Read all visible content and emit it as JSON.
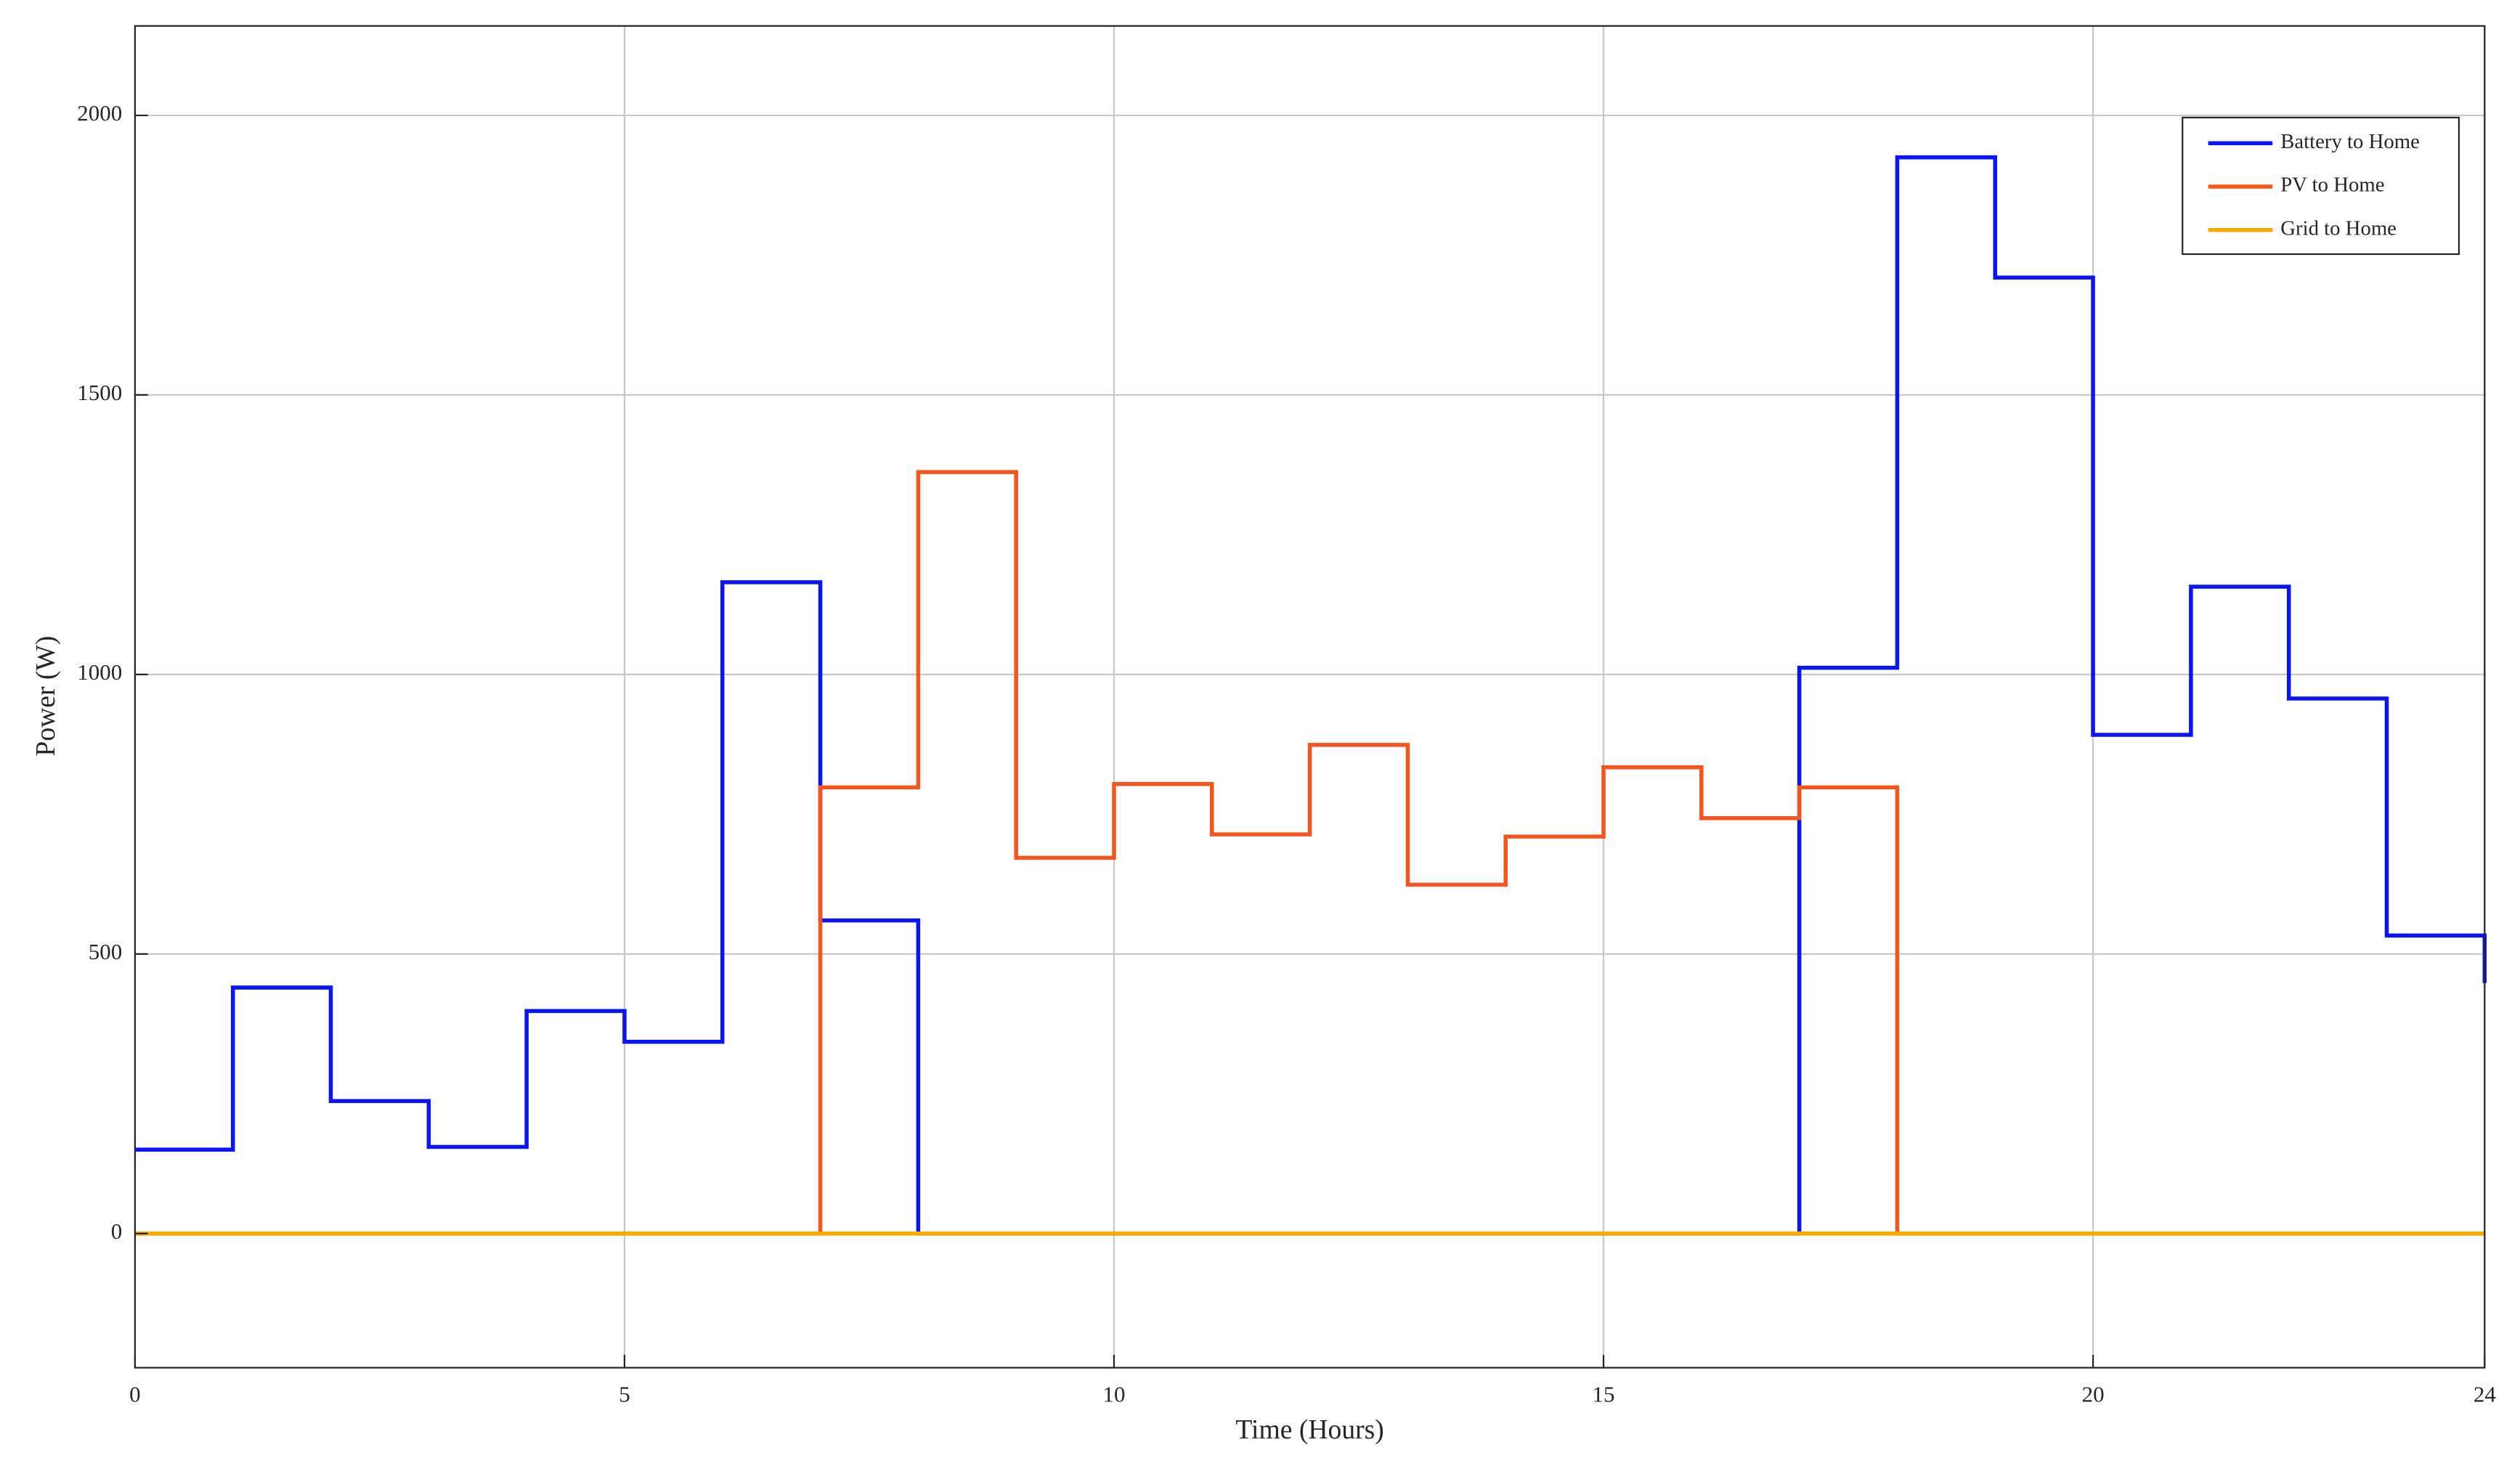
{
  "chart_data": {
    "type": "line",
    "step": true,
    "xlabel": "Time (Hours)",
    "ylabel": "Power (W)",
    "x": [
      0,
      1,
      2,
      3,
      4,
      5,
      6,
      7,
      8,
      9,
      10,
      11,
      12,
      13,
      14,
      15,
      16,
      17,
      18,
      19,
      20,
      21,
      22,
      23,
      24
    ],
    "series": [
      {
        "name": "Battery to Home",
        "color": "#0a14f5",
        "values": [
          150,
          440,
          237,
          155,
          398,
          343,
          1165,
          560,
          0,
          0,
          0,
          0,
          0,
          0,
          0,
          0,
          0,
          1012,
          1925,
          1710,
          892,
          1157,
          957,
          533,
          448
        ]
      },
      {
        "name": "PV to Home",
        "color": "#f4561f",
        "values": [
          0,
          0,
          0,
          0,
          0,
          0,
          0,
          798,
          1362,
          672,
          804,
          714,
          874,
          624,
          710,
          834,
          743,
          798,
          0,
          0,
          0,
          0,
          0,
          0,
          0
        ]
      },
      {
        "name": "Grid to Home",
        "color": "#f5ab00",
        "values": [
          0,
          0,
          0,
          0,
          0,
          0,
          0,
          0,
          0,
          0,
          0,
          0,
          0,
          0,
          0,
          0,
          0,
          0,
          0,
          0,
          0,
          0,
          0,
          0,
          0
        ]
      }
    ],
    "xlim": [
      0,
      24
    ],
    "xticks": [
      0,
      5,
      10,
      15,
      20,
      24
    ],
    "ylim": [
      -240,
      2160
    ],
    "yticks": [
      0,
      500,
      1000,
      1500,
      2000
    ],
    "grid": true,
    "legend": "upper right"
  }
}
